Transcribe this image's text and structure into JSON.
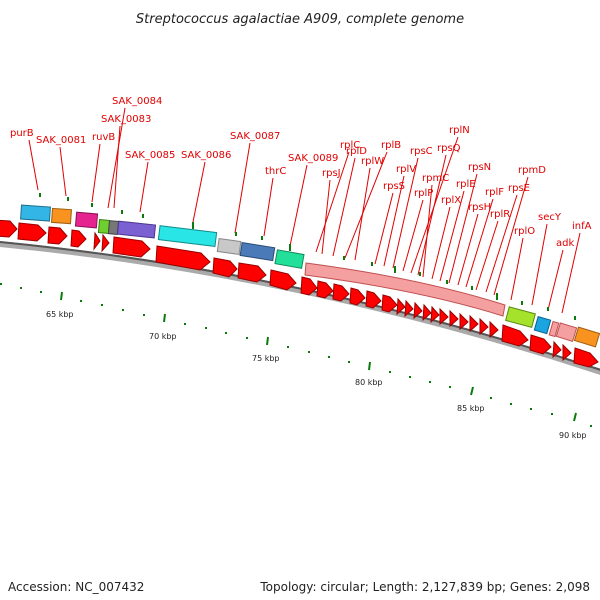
{
  "title": "Streptococcus agalactiae A909, complete genome",
  "footer": {
    "accession": "Accession: NC_007432",
    "summary": "Topology: circular; Length: 2,127,839 bp; Genes: 2,098"
  },
  "colors": {
    "label": "#e00000",
    "cds": "#ff0000",
    "tick": "#0a7a0a",
    "backbone": "#777777"
  },
  "scale_labels": [
    {
      "text": "65 kbp",
      "kbp": 65
    },
    {
      "text": "70 kbp",
      "kbp": 70
    },
    {
      "text": "75 kbp",
      "kbp": 75
    },
    {
      "text": "80 kbp",
      "kbp": 80
    },
    {
      "text": "85 kbp",
      "kbp": 85
    },
    {
      "text": "90 kbp",
      "kbp": 90
    }
  ],
  "gene_labels": [
    {
      "text": "purB"
    },
    {
      "text": "SAK_0081"
    },
    {
      "text": "ruvB"
    },
    {
      "text": "SAK_0084"
    },
    {
      "text": "SAK_0083"
    },
    {
      "text": "SAK_0085"
    },
    {
      "text": "SAK_0086"
    },
    {
      "text": "SAK_0087"
    },
    {
      "text": "thrC"
    },
    {
      "text": "SAK_0089"
    },
    {
      "text": "rplC"
    },
    {
      "text": "rpsJ"
    },
    {
      "text": "rplD"
    },
    {
      "text": "rplB"
    },
    {
      "text": "rplW"
    },
    {
      "text": "rpsS"
    },
    {
      "text": "rplV"
    },
    {
      "text": "rpsC"
    },
    {
      "text": "rplP"
    },
    {
      "text": "rplN"
    },
    {
      "text": "rpsQ"
    },
    {
      "text": "rpmC"
    },
    {
      "text": "rplX"
    },
    {
      "text": "rplE"
    },
    {
      "text": "rpsN"
    },
    {
      "text": "rpsH"
    },
    {
      "text": "rplF"
    },
    {
      "text": "rplR"
    },
    {
      "text": "rpsE"
    },
    {
      "text": "rpmD"
    },
    {
      "text": "rplO"
    },
    {
      "text": "secY"
    },
    {
      "text": "adk"
    },
    {
      "text": "infA"
    }
  ]
}
